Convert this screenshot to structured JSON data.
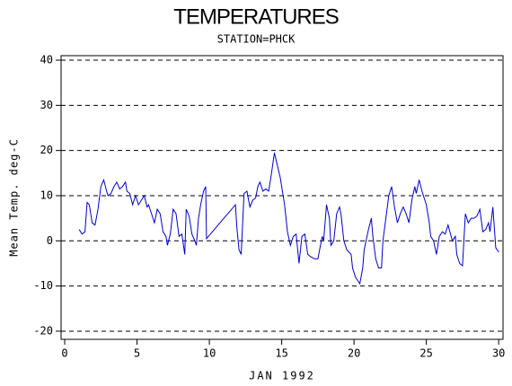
{
  "chart_data": {
    "type": "line",
    "title": "TEMPERATURES",
    "subtitle": "STATION=PHCK",
    "x_label": "JAN 1992",
    "y_label": "Mean Temp. deg-C",
    "xlim": [
      -0.25,
      30.3
    ],
    "xticks": [
      0,
      5,
      10,
      15,
      20,
      25,
      30
    ],
    "ylim": [
      -21.8,
      41
    ],
    "yticks": [
      -20,
      -10,
      0,
      10,
      20,
      30,
      40
    ],
    "grid": true,
    "x": [
      1.0,
      1.2,
      1.4,
      1.55,
      1.7,
      1.9,
      2.1,
      2.3,
      2.5,
      2.7,
      2.9,
      3.0,
      3.2,
      3.4,
      3.6,
      3.8,
      4.0,
      4.2,
      4.3,
      4.5,
      4.7,
      4.9,
      5.1,
      5.3,
      5.5,
      5.7,
      5.8,
      6.0,
      6.2,
      6.4,
      6.6,
      6.8,
      7.0,
      7.1,
      7.3,
      7.5,
      7.7,
      7.9,
      8.1,
      8.3,
      8.4,
      8.6,
      8.8,
      9.0,
      9.1,
      9.25,
      9.4,
      9.6,
      9.75,
      9.8,
      11.8,
      11.9,
      12.05,
      12.2,
      12.4,
      12.6,
      12.8,
      13.0,
      13.2,
      13.35,
      13.5,
      13.7,
      13.9,
      14.1,
      14.3,
      14.5,
      14.9,
      15.2,
      15.4,
      15.6,
      15.8,
      16.0,
      16.2,
      16.4,
      16.6,
      16.8,
      17.0,
      17.3,
      17.5,
      17.8,
      17.9,
      18.1,
      18.3,
      18.4,
      18.6,
      18.8,
      19.0,
      19.1,
      19.3,
      19.5,
      19.8,
      19.9,
      20.1,
      20.4,
      20.6,
      20.7,
      21.0,
      21.2,
      21.3,
      21.5,
      21.7,
      21.9,
      22.0,
      22.2,
      22.4,
      22.6,
      22.8,
      23.0,
      23.2,
      23.4,
      23.6,
      23.8,
      24.0,
      24.2,
      24.3,
      24.5,
      24.7,
      25.0,
      25.2,
      25.3,
      25.5,
      25.7,
      25.9,
      26.1,
      26.3,
      26.5,
      26.8,
      27.0,
      27.1,
      27.3,
      27.5,
      27.7,
      27.9,
      28.1,
      28.3,
      28.5,
      28.7,
      28.9,
      29.1,
      29.3,
      29.4,
      29.6,
      29.8,
      30.0
    ],
    "series": [
      {
        "color": "#0000cc",
        "values": [
          2.5,
          1.5,
          2,
          8.5,
          8,
          4,
          3.5,
          7,
          12,
          13.5,
          11,
          10,
          10.5,
          12,
          13,
          11.5,
          12,
          13,
          11,
          10.5,
          8,
          10,
          8,
          9,
          10,
          7.5,
          8,
          6,
          4,
          7,
          6,
          2,
          1,
          -1,
          1.5,
          7,
          6,
          1,
          1.5,
          -3,
          7,
          5.5,
          1.5,
          0,
          -1,
          5,
          8,
          11,
          12,
          0.5,
          8,
          3,
          -2,
          -3,
          10.5,
          11,
          7.5,
          9,
          9.5,
          12,
          13,
          11,
          11.5,
          11,
          15,
          19.5,
          14,
          8,
          2,
          -1,
          1,
          1.5,
          -5,
          1,
          1.5,
          -3,
          -3.5,
          -4,
          -4,
          1,
          0,
          8,
          5,
          -1,
          0,
          6,
          7.5,
          6,
          0,
          -2,
          -3,
          -6,
          -8,
          -9.5,
          -6,
          -2,
          2.5,
          5,
          1,
          -4,
          -6,
          -6,
          0,
          5,
          10,
          12,
          7.5,
          4,
          6,
          7.5,
          6,
          4,
          9,
          12,
          10.5,
          13.5,
          11,
          8,
          4,
          1,
          0,
          -3,
          1,
          2,
          1.5,
          3.5,
          0,
          1,
          -3,
          -5,
          -5.5,
          6,
          4,
          5,
          5,
          5.5,
          7,
          2,
          2.5,
          4,
          2,
          7.5,
          -1.5,
          -2.5
        ]
      }
    ]
  }
}
